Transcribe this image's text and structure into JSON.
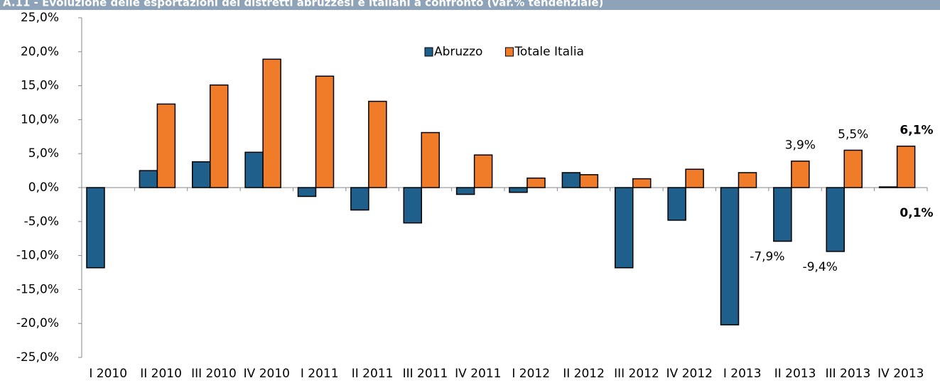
{
  "chart_data": {
    "type": "bar",
    "title": "A.11 - Evoluzione delle esportazioni dei distretti abruzzesi e italiani a confronto (var.% tendenziale)",
    "categories": [
      "I 2010",
      "II 2010",
      "III 2010",
      "IV 2010",
      "I 2011",
      "II 2011",
      "III 2011",
      "IV 2011",
      "I 2012",
      "II 2012",
      "III 2012",
      "IV 2012",
      "I 2013",
      "II 2013",
      "III 2013",
      "IV 2013"
    ],
    "series": [
      {
        "name": "Abruzzo",
        "color": "#1f5f8b",
        "values": [
          -11.8,
          2.5,
          3.8,
          5.2,
          -1.3,
          -3.3,
          -5.2,
          -1.0,
          -0.7,
          2.2,
          -11.8,
          -4.8,
          -20.2,
          -7.9,
          -9.4,
          0.1
        ],
        "value_labels": [
          null,
          null,
          null,
          null,
          null,
          null,
          null,
          null,
          null,
          null,
          null,
          null,
          null,
          "-7,9%",
          "-9,4%",
          "0,1%"
        ]
      },
      {
        "name": "Totale Italia",
        "color": "#f07c2a",
        "values": [
          0.0,
          12.3,
          15.1,
          18.9,
          16.4,
          12.7,
          8.1,
          4.8,
          1.4,
          1.9,
          1.3,
          2.7,
          2.2,
          3.9,
          5.5,
          6.1
        ],
        "value_labels": [
          null,
          null,
          null,
          null,
          null,
          null,
          null,
          null,
          null,
          null,
          null,
          null,
          null,
          "3,9%",
          "5,5%",
          "6,1%"
        ]
      }
    ],
    "ylim": [
      -25,
      25
    ],
    "yticks": [
      {
        "value": -25,
        "label": "-25,0%"
      },
      {
        "value": -20,
        "label": "-20,0%"
      },
      {
        "value": -15,
        "label": "-15,0%"
      },
      {
        "value": -10,
        "label": "-10,0%"
      },
      {
        "value": -5,
        "label": "-5,0%"
      },
      {
        "value": 0,
        "label": "0,0%"
      },
      {
        "value": 5,
        "label": "5,0%"
      },
      {
        "value": 10,
        "label": "10,0%"
      },
      {
        "value": 15,
        "label": "15,0%"
      },
      {
        "value": 20,
        "label": "20,0%"
      },
      {
        "value": 25,
        "label": "25,0%"
      }
    ],
    "grid": false,
    "legend": "top"
  }
}
